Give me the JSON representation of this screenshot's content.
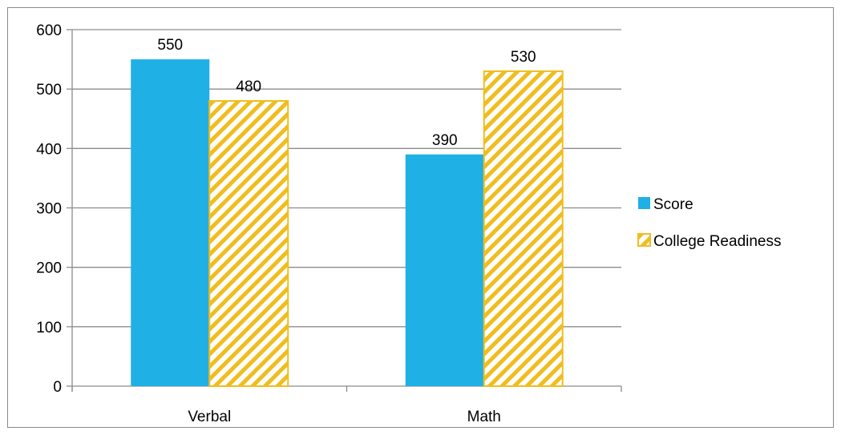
{
  "chart_data": {
    "type": "bar",
    "categories": [
      "Verbal",
      "Math"
    ],
    "series": [
      {
        "name": "Score",
        "values": [
          550,
          390
        ],
        "color": "#1fb0e6",
        "pattern": "solid"
      },
      {
        "name": "College Readiness",
        "values": [
          480,
          530
        ],
        "color": "#f0bd1e",
        "pattern": "diagonal-hatch"
      }
    ],
    "ylim": [
      0,
      600
    ],
    "yticks": [
      0,
      100,
      200,
      300,
      400,
      500,
      600
    ],
    "grid": true,
    "legend_position": "right",
    "data_labels": true
  }
}
